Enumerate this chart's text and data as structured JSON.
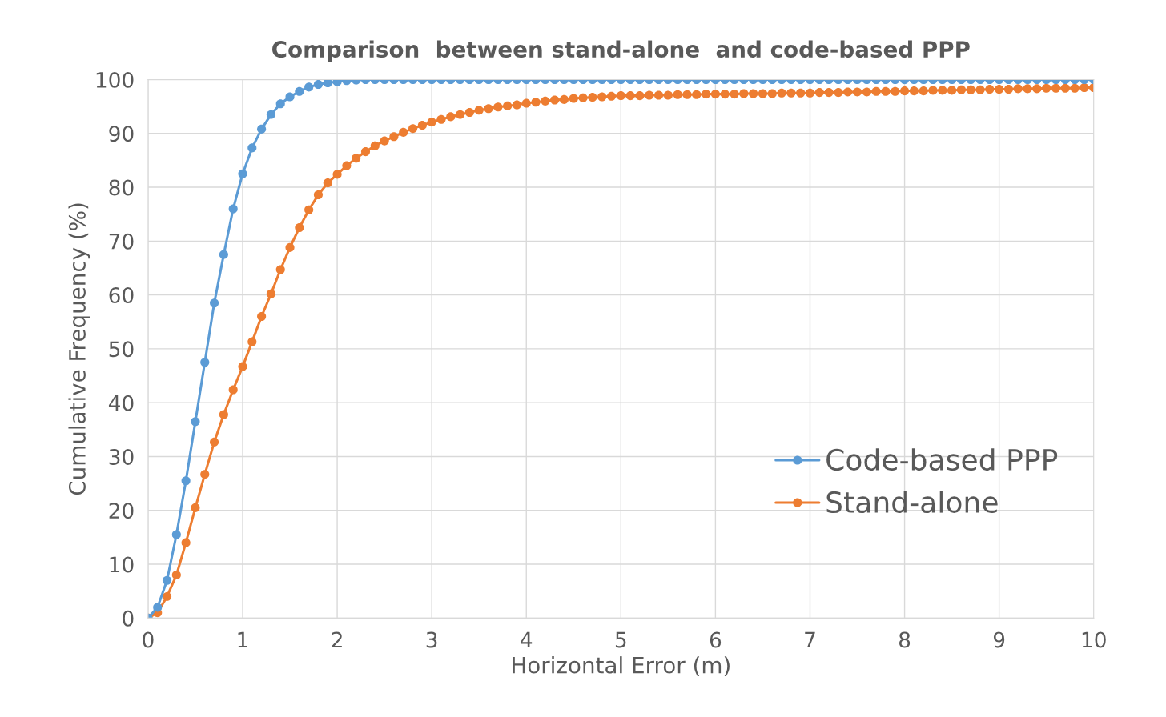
{
  "chart_data": {
    "type": "line",
    "title": "Comparison  between stand-alone  and code-based PPP",
    "xlabel": "Horizontal Error (m)",
    "ylabel": "Cumulative Frequency (%)",
    "x": [
      0,
      0.1,
      0.2,
      0.3,
      0.4,
      0.5,
      0.6,
      0.7,
      0.8,
      0.9,
      1,
      1.1,
      1.2,
      1.3,
      1.4,
      1.5,
      1.6,
      1.7,
      1.8,
      1.9,
      2,
      2.1,
      2.2,
      2.3,
      2.4,
      2.5,
      2.6,
      2.7,
      2.8,
      2.9,
      3,
      3.1,
      3.2,
      3.3,
      3.4,
      3.5,
      3.6,
      3.7,
      3.8,
      3.9,
      4,
      4.1,
      4.2,
      4.3,
      4.4,
      4.5,
      4.6,
      4.7,
      4.8,
      4.9,
      5,
      5.1,
      5.2,
      5.3,
      5.4,
      5.5,
      5.6,
      5.7,
      5.8,
      5.9,
      6,
      6.1,
      6.2,
      6.3,
      6.4,
      6.5,
      6.6,
      6.7,
      6.8,
      6.9,
      7,
      7.1,
      7.2,
      7.3,
      7.4,
      7.5,
      7.6,
      7.7,
      7.8,
      7.9,
      8,
      8.1,
      8.2,
      8.3,
      8.4,
      8.5,
      8.6,
      8.7,
      8.8,
      8.9,
      9,
      9.1,
      9.2,
      9.3,
      9.4,
      9.5,
      9.6,
      9.7,
      9.8,
      9.9,
      10
    ],
    "series": [
      {
        "name": "Stand-alone",
        "color": "#ed7d31",
        "values": [
          0,
          1,
          4,
          8,
          14,
          20.5,
          26.7,
          32.7,
          37.8,
          42.4,
          46.7,
          51.3,
          56,
          60.2,
          64.7,
          68.8,
          72.5,
          75.8,
          78.6,
          80.8,
          82.4,
          84,
          85.4,
          86.6,
          87.7,
          88.6,
          89.4,
          90.2,
          90.9,
          91.5,
          92.1,
          92.6,
          93.1,
          93.5,
          93.9,
          94.3,
          94.6,
          94.9,
          95.1,
          95.3,
          95.6,
          95.8,
          96,
          96.2,
          96.3,
          96.5,
          96.6,
          96.7,
          96.8,
          96.9,
          97,
          97,
          97,
          97.1,
          97.1,
          97.1,
          97.2,
          97.2,
          97.2,
          97.3,
          97.3,
          97.3,
          97.3,
          97.4,
          97.4,
          97.4,
          97.4,
          97.5,
          97.5,
          97.5,
          97.5,
          97.6,
          97.6,
          97.6,
          97.7,
          97.7,
          97.7,
          97.8,
          97.8,
          97.8,
          97.9,
          97.9,
          97.9,
          98,
          98,
          98,
          98.1,
          98.1,
          98.1,
          98.2,
          98.2,
          98.2,
          98.3,
          98.3,
          98.3,
          98.4,
          98.4,
          98.4,
          98.4,
          98.5,
          98.5
        ]
      },
      {
        "name": "Code-based PPP",
        "color": "#5b9bd5",
        "values": [
          0,
          2,
          7,
          15.5,
          25.5,
          36.5,
          47.5,
          58.5,
          67.5,
          76,
          82.5,
          87.3,
          90.8,
          93.5,
          95.5,
          96.8,
          97.8,
          98.6,
          99.1,
          99.4,
          99.6,
          99.8,
          99.9,
          100,
          100,
          100,
          100,
          100,
          100,
          100,
          100,
          100,
          100,
          100,
          100,
          100,
          100,
          100,
          100,
          100,
          100,
          100,
          100,
          100,
          100,
          100,
          100,
          100,
          100,
          100,
          100,
          100,
          100,
          100,
          100,
          100,
          100,
          100,
          100,
          100,
          100,
          100,
          100,
          100,
          100,
          100,
          100,
          100,
          100,
          100,
          100,
          100,
          100,
          100,
          100,
          100,
          100,
          100,
          100,
          100,
          100,
          100,
          100,
          100,
          100,
          100,
          100,
          100,
          100,
          100,
          100,
          100,
          100,
          100,
          100,
          100,
          100,
          100,
          100,
          100,
          100
        ]
      }
    ],
    "xlim": [
      0,
      10
    ],
    "xticks": [
      0,
      1,
      2,
      3,
      4,
      5,
      6,
      7,
      8,
      9,
      10
    ],
    "ylim": [
      0,
      100
    ],
    "yticks": [
      0,
      10,
      20,
      30,
      40,
      50,
      60,
      70,
      80,
      90,
      100
    ],
    "grid": true,
    "legend": "right",
    "marker": "circle",
    "line_style": "solid"
  }
}
